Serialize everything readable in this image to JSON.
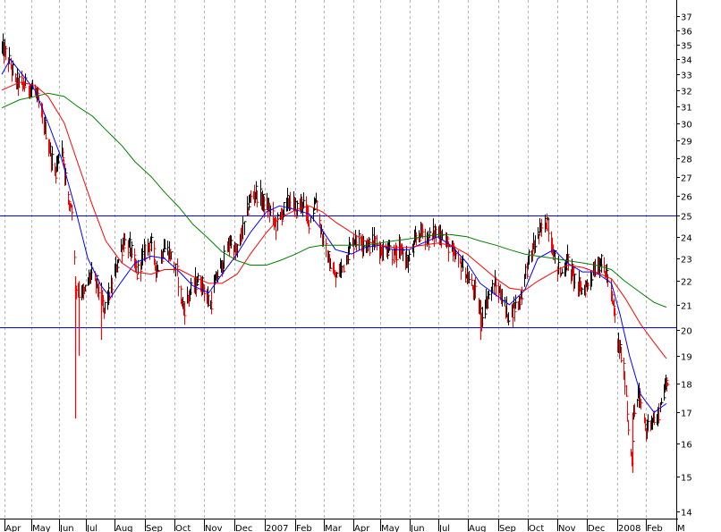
{
  "chart_data": {
    "type": "line",
    "subtype": "daily price bar chart with moving averages (log scale)",
    "y_scale": "log",
    "ylim": [
      14,
      37
    ],
    "y_ticks": [
      14,
      15,
      16,
      17,
      18,
      19,
      20,
      21,
      22,
      23,
      24,
      25,
      26,
      27,
      28,
      29,
      30,
      31,
      32,
      33,
      34,
      35,
      36,
      37
    ],
    "y_tick_labels": [
      "14",
      "15",
      "16",
      "17",
      "18",
      "19",
      "20",
      "21",
      "22",
      "23",
      "24",
      "25",
      "26",
      "27",
      "28",
      "29",
      "30",
      "31",
      "32",
      "33",
      "34",
      "35",
      "36",
      "37"
    ],
    "x_tick_labels": [
      "Apr",
      "May",
      "Jun",
      "Jul",
      "Aug",
      "Sep",
      "Oct",
      "Nov",
      "Dec",
      "2007",
      "Feb",
      "Mar",
      "Apr",
      "May",
      "Jun",
      "Jul",
      "Aug",
      "Sep",
      "Oct",
      "Nov",
      "Dec",
      "2008",
      "Feb",
      "M"
    ],
    "x_range": [
      "2006-03-27",
      "2008-02-29"
    ],
    "grid": "vertical dotted lines at month boundaries",
    "horizontal_lines": [
      {
        "value": 25.0,
        "color": "#0000ff"
      },
      {
        "value": 20.1,
        "color": "#0000ff"
      }
    ],
    "price_bar_color": "#ff0000",
    "price_bar_color_alt": "#000000",
    "price_path": [
      [
        "2006-03-27",
        34.8
      ],
      [
        "2006-04-03",
        34.0
      ],
      [
        "2006-04-10",
        32.6
      ],
      [
        "2006-04-20",
        32.3
      ],
      [
        "2006-05-01",
        32.0
      ],
      [
        "2006-05-08",
        30.5
      ],
      [
        "2006-05-15",
        28.8
      ],
      [
        "2006-05-22",
        27.2
      ],
      [
        "2006-05-29",
        28.6
      ],
      [
        "2006-06-05",
        25.8
      ],
      [
        "2006-06-09",
        25.5
      ],
      [
        "2006-06-13",
        22.0
      ],
      [
        "2006-06-15",
        21.5
      ],
      [
        "2006-06-22",
        21.5
      ],
      [
        "2006-06-29",
        22.3
      ],
      [
        "2006-07-06",
        21.8
      ],
      [
        "2006-07-13",
        20.8
      ],
      [
        "2006-07-20",
        21.6
      ],
      [
        "2006-07-27",
        22.8
      ],
      [
        "2006-08-03",
        23.8
      ],
      [
        "2006-08-10",
        23.4
      ],
      [
        "2006-08-17",
        22.3
      ],
      [
        "2006-08-24",
        23.2
      ],
      [
        "2006-08-31",
        23.8
      ],
      [
        "2006-09-07",
        22.5
      ],
      [
        "2006-09-14",
        23.5
      ],
      [
        "2006-09-21",
        23.2
      ],
      [
        "2006-09-28",
        22.3
      ],
      [
        "2006-10-05",
        20.8
      ],
      [
        "2006-10-12",
        21.5
      ],
      [
        "2006-10-19",
        22.0
      ],
      [
        "2006-10-26",
        21.8
      ],
      [
        "2006-11-02",
        21.0
      ],
      [
        "2006-11-09",
        22.2
      ],
      [
        "2006-11-16",
        22.8
      ],
      [
        "2006-11-23",
        23.8
      ],
      [
        "2006-11-30",
        23.2
      ],
      [
        "2006-12-07",
        24.3
      ],
      [
        "2006-12-14",
        25.8
      ],
      [
        "2006-12-21",
        26.2
      ],
      [
        "2006-12-28",
        25.7
      ],
      [
        "2007-01-04",
        25.3
      ],
      [
        "2007-01-11",
        24.6
      ],
      [
        "2007-01-18",
        25.2
      ],
      [
        "2007-01-25",
        25.8
      ],
      [
        "2007-02-01",
        25.3
      ],
      [
        "2007-02-08",
        25.7
      ],
      [
        "2007-02-15",
        24.8
      ],
      [
        "2007-02-22",
        25.8
      ],
      [
        "2007-03-01",
        24.0
      ],
      [
        "2007-03-08",
        22.8
      ],
      [
        "2007-03-15",
        22.1
      ],
      [
        "2007-03-22",
        22.6
      ],
      [
        "2007-03-29",
        23.4
      ],
      [
        "2007-04-05",
        23.9
      ],
      [
        "2007-04-12",
        23.8
      ],
      [
        "2007-04-19",
        23.6
      ],
      [
        "2007-04-26",
        23.8
      ],
      [
        "2007-05-03",
        23.3
      ],
      [
        "2007-05-10",
        23.5
      ],
      [
        "2007-05-17",
        23.1
      ],
      [
        "2007-05-24",
        23.4
      ],
      [
        "2007-05-31",
        22.8
      ],
      [
        "2007-06-07",
        23.8
      ],
      [
        "2007-06-14",
        24.3
      ],
      [
        "2007-06-21",
        23.9
      ],
      [
        "2007-06-28",
        24.2
      ],
      [
        "2007-07-05",
        24.1
      ],
      [
        "2007-07-12",
        23.6
      ],
      [
        "2007-07-19",
        23.1
      ],
      [
        "2007-07-26",
        22.7
      ],
      [
        "2007-08-02",
        22.1
      ],
      [
        "2007-08-09",
        21.6
      ],
      [
        "2007-08-16",
        20.5
      ],
      [
        "2007-08-23",
        21.3
      ],
      [
        "2007-08-30",
        21.8
      ],
      [
        "2007-09-06",
        21.4
      ],
      [
        "2007-09-13",
        20.6
      ],
      [
        "2007-09-20",
        20.9
      ],
      [
        "2007-09-27",
        21.3
      ],
      [
        "2007-10-04",
        22.8
      ],
      [
        "2007-10-11",
        23.6
      ],
      [
        "2007-10-18",
        24.3
      ],
      [
        "2007-10-25",
        24.8
      ],
      [
        "2007-11-01",
        23.1
      ],
      [
        "2007-11-08",
        22.3
      ],
      [
        "2007-11-15",
        22.9
      ],
      [
        "2007-11-22",
        22.2
      ],
      [
        "2007-11-29",
        21.6
      ],
      [
        "2007-12-06",
        21.8
      ],
      [
        "2007-12-13",
        22.5
      ],
      [
        "2007-12-20",
        22.8
      ],
      [
        "2007-12-27",
        22.3
      ],
      [
        "2008-01-03",
        20.8
      ],
      [
        "2008-01-07",
        19.5
      ],
      [
        "2008-01-10",
        19.2
      ],
      [
        "2008-01-15",
        18.2
      ],
      [
        "2008-01-18",
        16.5
      ],
      [
        "2008-01-22",
        15.6
      ],
      [
        "2008-01-24",
        16.8
      ],
      [
        "2008-01-29",
        17.6
      ],
      [
        "2008-02-01",
        17.3
      ],
      [
        "2008-02-06",
        16.4
      ],
      [
        "2008-02-12",
        16.8
      ],
      [
        "2008-02-18",
        16.7
      ],
      [
        "2008-02-22",
        17.4
      ],
      [
        "2008-02-28",
        18.0
      ]
    ],
    "spikes": [
      {
        "date": "2006-06-13",
        "high": 22.2,
        "low": 16.8
      },
      {
        "date": "2006-06-16",
        "high": 22.0,
        "low": 19.0
      },
      {
        "date": "2006-07-10",
        "high": 21.8,
        "low": 19.6
      },
      {
        "date": "2007-08-15",
        "high": 21.2,
        "low": 19.6
      },
      {
        "date": "2008-01-23",
        "high": 17.0,
        "low": 15.1
      }
    ],
    "series": [
      {
        "color": "#0000ff",
        "points": [
          [
            "2006-03-27",
            33.0
          ],
          [
            "2006-04-05",
            34.0
          ],
          [
            "2006-04-15",
            33.2
          ],
          [
            "2006-05-01",
            32.0
          ],
          [
            "2006-05-15",
            30.0
          ],
          [
            "2006-05-29",
            28.0
          ],
          [
            "2006-06-12",
            25.5
          ],
          [
            "2006-06-26",
            23.0
          ],
          [
            "2006-07-10",
            21.8
          ],
          [
            "2006-07-20",
            21.3
          ],
          [
            "2006-08-01",
            22.0
          ],
          [
            "2006-08-15",
            22.8
          ],
          [
            "2006-09-01",
            23.1
          ],
          [
            "2006-09-15",
            23.0
          ],
          [
            "2006-10-01",
            22.4
          ],
          [
            "2006-10-15",
            21.8
          ],
          [
            "2006-11-01",
            21.5
          ],
          [
            "2006-11-15",
            22.3
          ],
          [
            "2006-12-01",
            23.2
          ],
          [
            "2006-12-15",
            24.2
          ],
          [
            "2007-01-01",
            25.2
          ],
          [
            "2007-01-15",
            25.5
          ],
          [
            "2007-02-01",
            25.3
          ],
          [
            "2007-02-15",
            25.1
          ],
          [
            "2007-03-01",
            24.3
          ],
          [
            "2007-03-15",
            23.4
          ],
          [
            "2007-04-01",
            23.2
          ],
          [
            "2007-04-15",
            23.5
          ],
          [
            "2007-05-01",
            23.6
          ],
          [
            "2007-05-15",
            23.4
          ],
          [
            "2007-06-01",
            23.4
          ],
          [
            "2007-06-15",
            23.7
          ],
          [
            "2007-07-01",
            24.0
          ],
          [
            "2007-07-15",
            23.6
          ],
          [
            "2007-08-01",
            22.8
          ],
          [
            "2007-08-15",
            21.9
          ],
          [
            "2007-09-01",
            21.4
          ],
          [
            "2007-09-15",
            21.0
          ],
          [
            "2007-10-01",
            21.6
          ],
          [
            "2007-10-15",
            23.0
          ],
          [
            "2007-11-01",
            23.4
          ],
          [
            "2007-11-15",
            22.8
          ],
          [
            "2007-12-01",
            22.4
          ],
          [
            "2007-12-15",
            22.4
          ],
          [
            "2008-01-01",
            21.9
          ],
          [
            "2008-01-10",
            20.6
          ],
          [
            "2008-01-20",
            19.0
          ],
          [
            "2008-02-01",
            17.6
          ],
          [
            "2008-02-15",
            17.0
          ],
          [
            "2008-02-28",
            17.3
          ]
        ]
      },
      {
        "color": "#ff0000",
        "points": [
          [
            "2006-03-27",
            32.0
          ],
          [
            "2006-04-15",
            32.5
          ],
          [
            "2006-05-01",
            32.3
          ],
          [
            "2006-05-15",
            31.6
          ],
          [
            "2006-06-01",
            30.0
          ],
          [
            "2006-06-15",
            27.8
          ],
          [
            "2006-07-01",
            25.5
          ],
          [
            "2006-07-15",
            23.8
          ],
          [
            "2006-08-01",
            22.8
          ],
          [
            "2006-08-15",
            22.4
          ],
          [
            "2006-09-01",
            22.3
          ],
          [
            "2006-09-15",
            22.5
          ],
          [
            "2006-10-01",
            22.5
          ],
          [
            "2006-10-15",
            22.2
          ],
          [
            "2006-11-01",
            21.9
          ],
          [
            "2006-11-15",
            21.9
          ],
          [
            "2006-12-01",
            22.3
          ],
          [
            "2006-12-15",
            23.2
          ],
          [
            "2007-01-01",
            24.2
          ],
          [
            "2007-01-15",
            24.9
          ],
          [
            "2007-02-01",
            25.3
          ],
          [
            "2007-02-15",
            25.5
          ],
          [
            "2007-03-01",
            25.2
          ],
          [
            "2007-03-15",
            24.7
          ],
          [
            "2007-04-01",
            24.2
          ],
          [
            "2007-04-15",
            23.8
          ],
          [
            "2007-05-01",
            23.6
          ],
          [
            "2007-05-15",
            23.5
          ],
          [
            "2007-06-01",
            23.5
          ],
          [
            "2007-06-15",
            23.6
          ],
          [
            "2007-07-01",
            23.7
          ],
          [
            "2007-07-15",
            23.6
          ],
          [
            "2007-08-01",
            23.2
          ],
          [
            "2007-08-15",
            22.7
          ],
          [
            "2007-09-01",
            22.1
          ],
          [
            "2007-09-15",
            21.7
          ],
          [
            "2007-10-01",
            21.6
          ],
          [
            "2007-10-15",
            22.0
          ],
          [
            "2007-11-01",
            22.4
          ],
          [
            "2007-11-15",
            22.7
          ],
          [
            "2007-12-01",
            22.6
          ],
          [
            "2007-12-15",
            22.4
          ],
          [
            "2008-01-01",
            22.1
          ],
          [
            "2008-01-15",
            21.3
          ],
          [
            "2008-02-01",
            20.2
          ],
          [
            "2008-02-15",
            19.5
          ],
          [
            "2008-02-28",
            18.9
          ]
        ]
      },
      {
        "color": "#008000",
        "points": [
          [
            "2006-03-27",
            30.9
          ],
          [
            "2006-04-15",
            31.4
          ],
          [
            "2006-05-01",
            31.6
          ],
          [
            "2006-05-15",
            31.8
          ],
          [
            "2006-06-01",
            31.6
          ],
          [
            "2006-06-15",
            31.0
          ],
          [
            "2006-07-01",
            30.4
          ],
          [
            "2006-07-15",
            29.6
          ],
          [
            "2006-08-01",
            28.7
          ],
          [
            "2006-08-15",
            27.8
          ],
          [
            "2006-09-01",
            27.0
          ],
          [
            "2006-09-15",
            26.2
          ],
          [
            "2006-10-01",
            25.4
          ],
          [
            "2006-10-15",
            24.6
          ],
          [
            "2006-11-01",
            23.9
          ],
          [
            "2006-11-15",
            23.3
          ],
          [
            "2006-12-01",
            22.9
          ],
          [
            "2006-12-15",
            22.7
          ],
          [
            "2007-01-01",
            22.7
          ],
          [
            "2007-01-15",
            22.9
          ],
          [
            "2007-02-01",
            23.2
          ],
          [
            "2007-02-15",
            23.5
          ],
          [
            "2007-03-01",
            23.6
          ],
          [
            "2007-03-15",
            23.6
          ],
          [
            "2007-04-01",
            23.6
          ],
          [
            "2007-04-15",
            23.6
          ],
          [
            "2007-05-01",
            23.7
          ],
          [
            "2007-05-15",
            23.8
          ],
          [
            "2007-06-01",
            23.9
          ],
          [
            "2007-06-15",
            24.0
          ],
          [
            "2007-07-01",
            24.1
          ],
          [
            "2007-07-15",
            24.1
          ],
          [
            "2007-08-01",
            24.0
          ],
          [
            "2007-08-15",
            23.8
          ],
          [
            "2007-09-01",
            23.6
          ],
          [
            "2007-09-15",
            23.4
          ],
          [
            "2007-10-01",
            23.2
          ],
          [
            "2007-10-15",
            23.1
          ],
          [
            "2007-11-01",
            23.0
          ],
          [
            "2007-11-15",
            22.9
          ],
          [
            "2007-12-01",
            22.8
          ],
          [
            "2007-12-15",
            22.7
          ],
          [
            "2008-01-01",
            22.5
          ],
          [
            "2008-01-15",
            22.0
          ],
          [
            "2008-02-01",
            21.5
          ],
          [
            "2008-02-15",
            21.1
          ],
          [
            "2008-02-28",
            20.9
          ]
        ]
      }
    ]
  }
}
